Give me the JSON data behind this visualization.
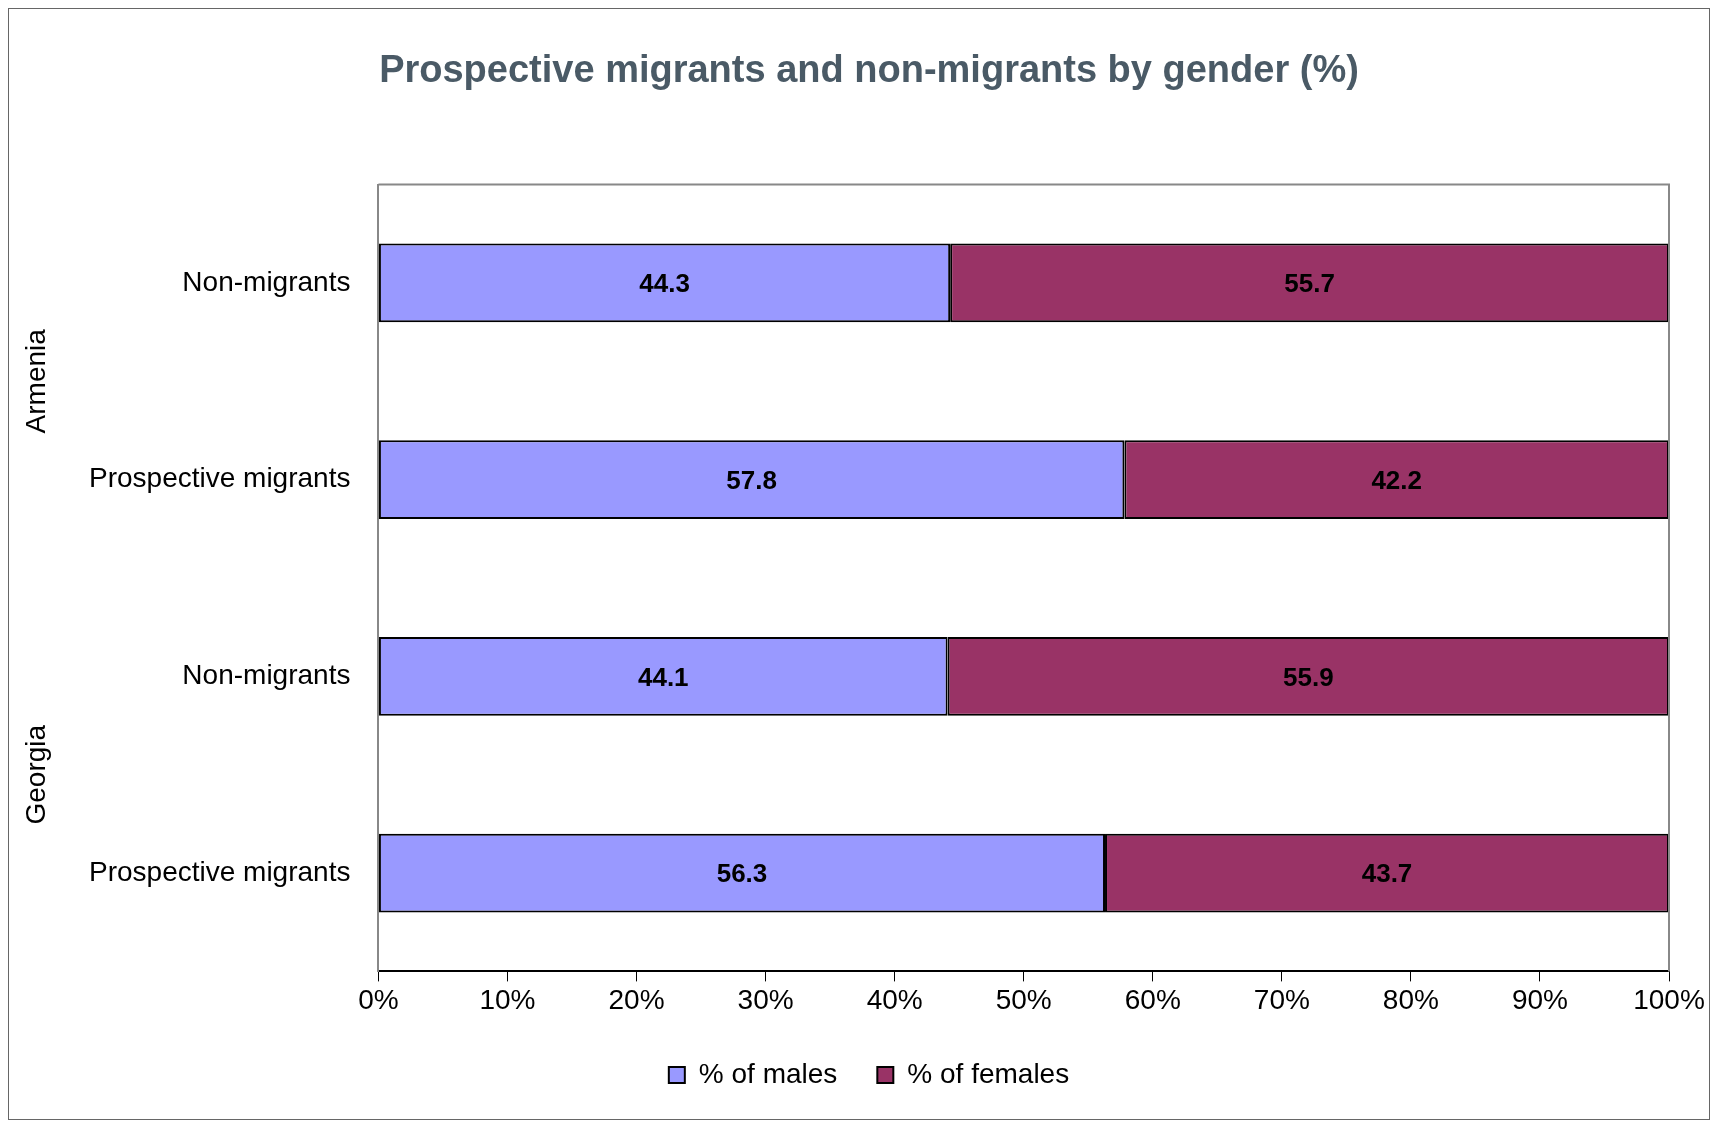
{
  "chart_data": {
    "type": "bar",
    "title": "Prospective migrants and non-migrants by gender (%)",
    "orientation": "horizontal",
    "stacked": true,
    "categories": [
      "Non-migrants",
      "Prospective migrants",
      "Non-migrants",
      "Prospective migrants"
    ],
    "series": [
      {
        "name": "% of males",
        "color": "#9999ff",
        "values": [
          44.3,
          57.8,
          44.1,
          56.3
        ]
      },
      {
        "name": "% of females",
        "color": "#993366",
        "values": [
          55.7,
          42.2,
          55.9,
          43.7
        ]
      }
    ],
    "xlim": [
      0,
      100
    ],
    "xticks": [
      {
        "value": 0,
        "label": "0%"
      },
      {
        "value": 10,
        "label": "10%"
      },
      {
        "value": 20,
        "label": "20%"
      },
      {
        "value": 30,
        "label": "30%"
      },
      {
        "value": 40,
        "label": "40%"
      },
      {
        "value": 50,
        "label": "50%"
      },
      {
        "value": 60,
        "label": "60%"
      },
      {
        "value": 70,
        "label": "70%"
      },
      {
        "value": 80,
        "label": "80%"
      },
      {
        "value": 90,
        "label": "90%"
      },
      {
        "value": 100,
        "label": "100%"
      }
    ],
    "data_labels": true,
    "legend": "bottom",
    "annotations": [
      "Armenia",
      "Georgia"
    ]
  }
}
